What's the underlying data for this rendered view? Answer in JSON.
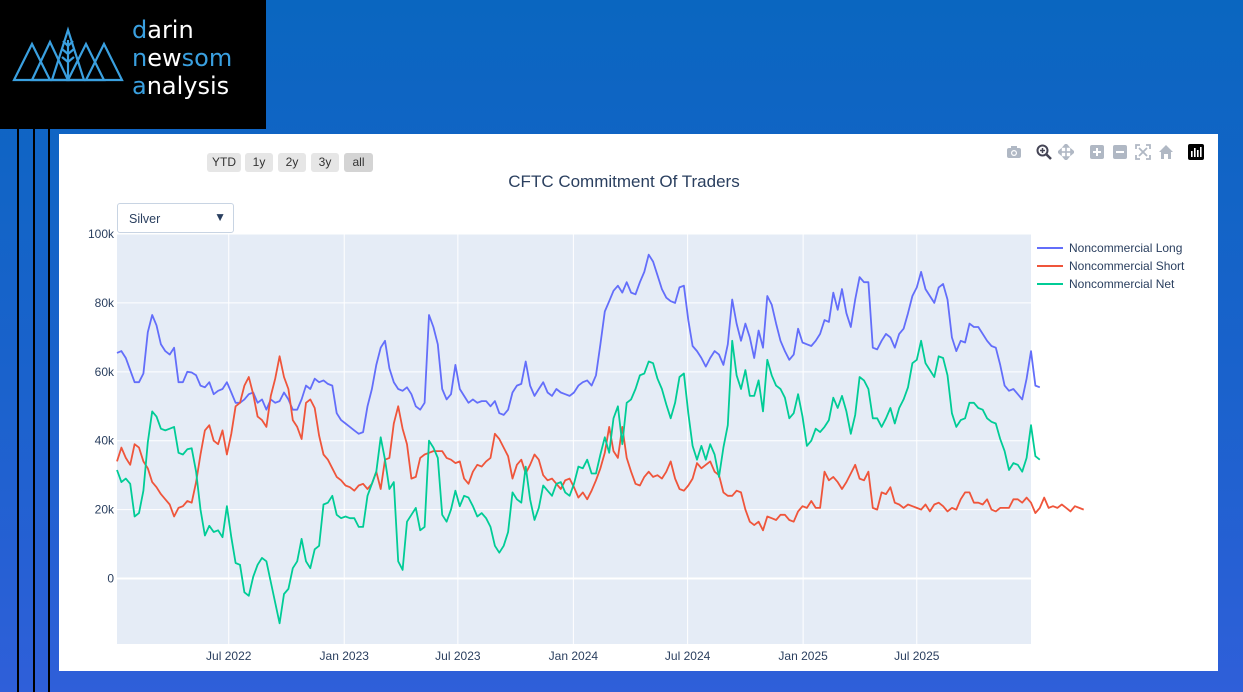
{
  "brand": {
    "line1_initial": "d",
    "line1_rest": "arin",
    "line2_initial": "n",
    "line2_mid": "ew",
    "line2_rest": "som",
    "line3_initial": "a",
    "line3_rest": "nalysis",
    "accent_color": "#3aa0e0"
  },
  "range_selector": {
    "buttons": [
      {
        "label": "YTD"
      },
      {
        "label": "1y"
      },
      {
        "label": "2y"
      },
      {
        "label": "3y"
      },
      {
        "label": "all",
        "active": true
      }
    ]
  },
  "dropdown": {
    "selected": "Silver"
  },
  "modebar": {
    "icons": [
      "camera-icon",
      "zoom-icon",
      "pan-icon",
      "zoom-in-icon",
      "zoom-out-icon",
      "autoscale-icon",
      "reset-axes-icon",
      "plotly-logo-icon"
    ]
  },
  "chart_data": {
    "type": "line",
    "title": "CFTC Commitment Of Traders",
    "xlabel": "",
    "ylabel": "",
    "x_start": "2022-01-04",
    "x_step_days": 7,
    "xlim": [
      "2022-01-04",
      "2025-12-30"
    ],
    "ylim": [
      -19000,
      100000
    ],
    "yticks": [
      0,
      20000,
      40000,
      60000,
      80000,
      100000
    ],
    "ytick_labels": [
      "0",
      "20k",
      "40k",
      "60k",
      "80k",
      "100k"
    ],
    "xticks": [
      "2022-07-01",
      "2023-01-01",
      "2023-07-01",
      "2024-01-01",
      "2024-07-01",
      "2025-01-01",
      "2025-07-01"
    ],
    "xtick_labels": [
      "Jul 2022",
      "Jan 2023",
      "Jul 2023",
      "Jan 2024",
      "Jul 2024",
      "Jan 2025",
      "Jul 2025"
    ],
    "legend_position": "right",
    "series": [
      {
        "name": "Noncommercial Long",
        "color": "#636efa",
        "values": [
          65500,
          66000,
          64000,
          60500,
          57000,
          57000,
          59500,
          71500,
          76500,
          73500,
          68000,
          66000,
          65000,
          67000,
          57000,
          57000,
          60000,
          59800,
          59000,
          56000,
          55500,
          57000,
          53500,
          54500,
          55000,
          57000,
          54000,
          51000,
          51000,
          52000,
          53500,
          54000,
          51000,
          52000,
          49000,
          52000,
          51000,
          51500,
          54000,
          52000,
          49000,
          49000,
          52000,
          56000,
          55000,
          58000,
          57000,
          57500,
          56500,
          56000,
          48000,
          46000,
          45000,
          44000,
          43000,
          42000,
          42500,
          50000,
          55000,
          62000,
          67000,
          69000,
          61000,
          57000,
          55000,
          54500,
          55500,
          53500,
          50000,
          49000,
          51000,
          76500,
          73000,
          68000,
          55000,
          52000,
          53500,
          62000,
          55000,
          53000,
          51000,
          52000,
          51000,
          51500,
          51500,
          50000,
          51500,
          48000,
          47500,
          49000,
          54000,
          56000,
          56500,
          63000,
          56000,
          53000,
          55000,
          57000,
          54000,
          53000,
          55000,
          54000,
          53500,
          53000,
          54000,
          56000,
          57000,
          57500,
          56000,
          59000,
          68000,
          77500,
          80500,
          83500,
          85000,
          83000,
          86000,
          83000,
          82500,
          86000,
          89000,
          94000,
          92000,
          88000,
          84000,
          81500,
          80500,
          80000,
          84500,
          85000,
          75000,
          67500,
          66000,
          64000,
          61500,
          64000,
          66000,
          65000,
          62000,
          68000,
          81000,
          74000,
          69000,
          74000,
          70000,
          64000,
          72000,
          67000,
          82000,
          79500,
          74000,
          69000,
          66000,
          63500,
          65000,
          72500,
          68500,
          68000,
          67500,
          69000,
          71000,
          75000,
          74500,
          83000,
          78000,
          84000,
          77000,
          73000,
          81000,
          87500,
          86000,
          86000,
          67000,
          66500,
          69000,
          71000,
          70000,
          67000,
          71000,
          72500,
          77000,
          82000,
          84500,
          89000,
          84000,
          82000,
          80000,
          84500,
          85500,
          81000,
          70000,
          66000,
          69000,
          68500,
          74000,
          73000,
          73000,
          71000,
          69000,
          67500,
          67000,
          62000,
          56000,
          54500,
          55000,
          53500,
          52000,
          58000,
          66000,
          56000,
          55500
        ]
      },
      {
        "name": "Noncommercial Short",
        "color": "#ef553b",
        "values": [
          34000,
          38000,
          35000,
          33000,
          39000,
          38000,
          34000,
          32000,
          28000,
          26500,
          24500,
          23000,
          21500,
          18000,
          20500,
          21000,
          22500,
          22000,
          28000,
          36000,
          43000,
          44500,
          40000,
          39000,
          43000,
          36000,
          42000,
          50000,
          51000,
          56000,
          58500,
          53500,
          47000,
          46000,
          44000,
          53000,
          58000,
          64500,
          58500,
          55000,
          46000,
          44000,
          40500,
          51000,
          52000,
          49500,
          41500,
          36000,
          34500,
          32000,
          29500,
          28500,
          27000,
          26500,
          25500,
          27000,
          27500,
          26000,
          27500,
          31000,
          26000,
          34500,
          35000,
          45000,
          50000,
          43500,
          39000,
          29000,
          29500,
          35000,
          36000,
          36500,
          37000,
          37000,
          37000,
          35000,
          34500,
          33500,
          34000,
          29000,
          27500,
          31000,
          33000,
          32500,
          34000,
          35000,
          42000,
          40500,
          38000,
          35500,
          29000,
          33000,
          34500,
          30500,
          33000,
          36000,
          34500,
          30000,
          28500,
          29000,
          27500,
          26000,
          28500,
          29000,
          26500,
          23500,
          25000,
          23000,
          25500,
          28500,
          32000,
          36500,
          44000,
          37000,
          35000,
          44000,
          35000,
          31000,
          27500,
          27000,
          29500,
          31000,
          29500,
          30000,
          29000,
          31000,
          34000,
          29000,
          26000,
          25500,
          27000,
          29000,
          33500,
          32000,
          33000,
          34000,
          31000,
          30000,
          25000,
          24000,
          24000,
          25500,
          25000,
          20000,
          16500,
          15500,
          16500,
          14000,
          18000,
          17500,
          17000,
          18500,
          18500,
          17000,
          16500,
          19500,
          21000,
          20500,
          22500,
          20500,
          20500,
          31000,
          28500,
          29500,
          28000,
          26000,
          28000,
          30500,
          33000,
          29000,
          28500,
          31000,
          20500,
          20000,
          25000,
          24500,
          26500,
          22000,
          21500,
          20500,
          21500,
          21000,
          20500,
          20000,
          21500,
          19500,
          21500,
          22000,
          21000,
          19500,
          20500,
          20000,
          23000,
          25000,
          25000,
          22000,
          22000,
          21500,
          23000,
          20000,
          19500,
          20500,
          20500,
          20500,
          23000,
          23000,
          22000,
          23500,
          22000,
          19000,
          20500,
          23500,
          20500,
          21000,
          20500,
          21500,
          20500,
          19500,
          21000,
          20500,
          20000
        ]
      },
      {
        "name": "Noncommercial Net",
        "color": "#00cc96",
        "values": [
          31500,
          28000,
          29000,
          27500,
          18000,
          19000,
          25500,
          39500,
          48500,
          47000,
          43500,
          43000,
          43500,
          44000,
          36500,
          36000,
          37500,
          37800,
          31000,
          20000,
          12500,
          15300,
          13500,
          14000,
          12000,
          21000,
          12000,
          4500,
          4000,
          -4000,
          -5000,
          500,
          4000,
          6000,
          5000,
          -1000,
          -7000,
          -13000,
          -4500,
          -3000,
          3000,
          5000,
          11500,
          5000,
          3000,
          8500,
          9500,
          21500,
          22000,
          24000,
          18500,
          17500,
          18000,
          17500,
          17500,
          15000,
          15000,
          24000,
          27500,
          31000,
          41000,
          34500,
          26000,
          28000,
          5000,
          2500,
          16500,
          18500,
          20500,
          14000,
          15000,
          40000,
          38000,
          35000,
          18500,
          16500,
          20000,
          25500,
          21000,
          24000,
          23500,
          21000,
          18000,
          19000,
          17500,
          15000,
          9500,
          7500,
          9500,
          13500,
          25000,
          23000,
          22000,
          32500,
          23000,
          17000,
          20500,
          27000,
          25500,
          24000,
          27500,
          28000,
          25000,
          24000,
          27500,
          32500,
          32000,
          34500,
          30500,
          30500,
          36000,
          41000,
          36500,
          46500,
          50000,
          39000,
          51000,
          52000,
          55000,
          59000,
          59500,
          63000,
          62500,
          58000,
          55000,
          50500,
          46500,
          51000,
          58500,
          59500,
          48000,
          38500,
          34500,
          38500,
          34500,
          39000,
          36000,
          29500,
          38000,
          44500,
          69000,
          59000,
          55000,
          60500,
          53000,
          53000,
          57500,
          48500,
          63500,
          59000,
          56000,
          55000,
          52500,
          46500,
          48000,
          53500,
          47000,
          38500,
          40000,
          43500,
          42500,
          44000,
          46000,
          52500,
          49500,
          53000,
          48500,
          42000,
          47500,
          58500,
          57500,
          55000,
          46500,
          46500,
          44000,
          46500,
          49500,
          45000,
          49500,
          52000,
          55500,
          62500,
          63500,
          69000,
          62500,
          60500,
          58500,
          64500,
          64000,
          59000,
          48000,
          44000,
          46000,
          46500,
          51000,
          51000,
          49500,
          49000,
          46500,
          45500,
          45000,
          40500,
          37000,
          31500,
          33500,
          33000,
          31000,
          35000,
          44500,
          35500,
          34500
        ]
      }
    ]
  }
}
